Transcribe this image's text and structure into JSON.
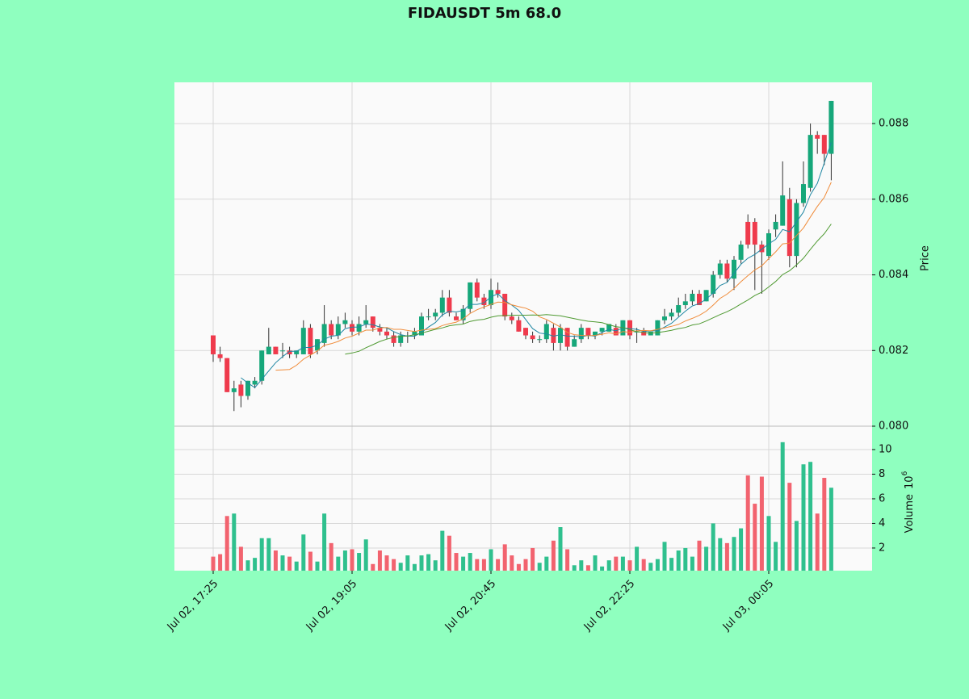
{
  "chart_data": {
    "type": "candlestick",
    "title": "FIDAUSDT 5m 68.0",
    "categories": [
      "Jul 02, 17:25",
      null,
      null,
      null,
      null,
      null,
      null,
      null,
      null,
      null,
      null,
      null,
      null,
      null,
      null,
      null,
      null,
      null,
      null,
      null,
      "Jul 02, 19:05",
      null,
      null,
      null,
      null,
      null,
      null,
      null,
      null,
      null,
      null,
      null,
      null,
      null,
      null,
      null,
      null,
      null,
      null,
      null,
      "Jul 02, 20:45",
      null,
      null,
      null,
      null,
      null,
      null,
      null,
      null,
      null,
      null,
      null,
      null,
      null,
      null,
      null,
      null,
      null,
      null,
      null,
      "Jul 02, 22:25",
      null,
      null,
      null,
      null,
      null,
      null,
      null,
      null,
      null,
      null,
      null,
      null,
      null,
      null,
      null,
      null,
      null,
      null,
      null,
      "Jul 03, 00:05",
      null,
      null,
      null,
      null,
      null,
      null,
      null,
      null,
      null
    ],
    "open": [
      0.0824,
      0.0819,
      0.0818,
      0.0809,
      0.0811,
      0.0808,
      0.0811,
      0.0812,
      0.0819,
      0.0821,
      0.082,
      0.082,
      0.0819,
      0.0819,
      0.0826,
      0.082,
      0.0822,
      0.0827,
      0.0824,
      0.0827,
      0.0827,
      0.0825,
      0.0827,
      0.0829,
      0.0826,
      0.0825,
      0.0824,
      0.0822,
      0.0824,
      0.0824,
      0.0824,
      0.0829,
      0.0829,
      0.083,
      0.0834,
      0.0829,
      0.0828,
      0.0831,
      0.0838,
      0.0834,
      0.0832,
      0.0836,
      0.0835,
      0.0829,
      0.0828,
      0.0826,
      0.0824,
      0.0823,
      0.0823,
      0.0826,
      0.0822,
      0.0826,
      0.0821,
      0.0823,
      0.0826,
      0.0824,
      0.0825,
      0.0825,
      0.0826,
      0.0824,
      0.0828,
      0.0825,
      0.0825,
      0.0824,
      0.0824,
      0.0828,
      0.0829,
      0.083,
      0.0832,
      0.0833,
      0.0835,
      0.0833,
      0.0835,
      0.084,
      0.0843,
      0.0839,
      0.0844,
      0.0854,
      0.0854,
      0.0848,
      0.0845,
      0.0852,
      0.0853,
      0.086,
      0.0845,
      0.0859,
      0.0863,
      0.0877,
      0.0877,
      0.0872
    ],
    "high": [
      0.0824,
      0.0821,
      0.0818,
      0.0812,
      0.0812,
      0.0812,
      0.0813,
      0.082,
      0.0826,
      0.0821,
      0.0822,
      0.0821,
      0.082,
      0.0828,
      0.0827,
      0.0823,
      0.0832,
      0.0828,
      0.0829,
      0.083,
      0.0828,
      0.0829,
      0.0832,
      0.0829,
      0.0827,
      0.0826,
      0.0825,
      0.0825,
      0.0825,
      0.0826,
      0.083,
      0.0831,
      0.0831,
      0.0836,
      0.0836,
      0.083,
      0.0832,
      0.0838,
      0.0839,
      0.0835,
      0.0839,
      0.0838,
      0.0835,
      0.083,
      0.0829,
      0.0826,
      0.0825,
      0.0824,
      0.0828,
      0.0827,
      0.0827,
      0.0826,
      0.0824,
      0.0827,
      0.0826,
      0.0825,
      0.0826,
      0.0827,
      0.0827,
      0.0828,
      0.0828,
      0.0826,
      0.0826,
      0.0825,
      0.0828,
      0.0831,
      0.0831,
      0.0834,
      0.0835,
      0.0836,
      0.0836,
      0.0836,
      0.0841,
      0.0844,
      0.0844,
      0.0845,
      0.0849,
      0.0856,
      0.0855,
      0.0849,
      0.0852,
      0.0856,
      0.087,
      0.0863,
      0.086,
      0.087,
      0.088,
      0.0878,
      0.0877,
      0.0886
    ],
    "low": [
      0.0817,
      0.0817,
      0.0809,
      0.0804,
      0.0805,
      0.0807,
      0.081,
      0.0811,
      0.0819,
      0.0819,
      0.0818,
      0.0818,
      0.0818,
      0.0819,
      0.0818,
      0.0819,
      0.0821,
      0.0823,
      0.0823,
      0.0826,
      0.0824,
      0.0824,
      0.0826,
      0.0825,
      0.0824,
      0.0823,
      0.0821,
      0.0821,
      0.0822,
      0.0823,
      0.0824,
      0.0828,
      0.0828,
      0.0829,
      0.0829,
      0.0828,
      0.0827,
      0.083,
      0.0833,
      0.0831,
      0.0831,
      0.0834,
      0.0828,
      0.0827,
      0.0825,
      0.0823,
      0.0822,
      0.0822,
      0.0822,
      0.082,
      0.082,
      0.082,
      0.0821,
      0.0822,
      0.0823,
      0.0823,
      0.0824,
      0.0825,
      0.0824,
      0.0824,
      0.0823,
      0.0822,
      0.0824,
      0.0824,
      0.0824,
      0.0827,
      0.0828,
      0.0829,
      0.0831,
      0.0832,
      0.0832,
      0.0833,
      0.0834,
      0.0839,
      0.0838,
      0.0836,
      0.0843,
      0.0847,
      0.0836,
      0.0835,
      0.0844,
      0.085,
      0.0853,
      0.0842,
      0.0842,
      0.0858,
      0.0862,
      0.0872,
      0.0869,
      0.0865
    ],
    "close": [
      0.0819,
      0.0818,
      0.0809,
      0.081,
      0.0808,
      0.0812,
      0.0812,
      0.082,
      0.0821,
      0.0819,
      0.082,
      0.0819,
      0.082,
      0.0826,
      0.0819,
      0.0823,
      0.0827,
      0.0824,
      0.0827,
      0.0828,
      0.0825,
      0.0827,
      0.0828,
      0.0826,
      0.0825,
      0.0824,
      0.0822,
      0.0824,
      0.0824,
      0.0825,
      0.0829,
      0.0829,
      0.083,
      0.0834,
      0.083,
      0.0828,
      0.0831,
      0.0838,
      0.0834,
      0.0832,
      0.0836,
      0.0835,
      0.0829,
      0.0828,
      0.0825,
      0.0824,
      0.0823,
      0.0823,
      0.0827,
      0.0822,
      0.0826,
      0.0821,
      0.0823,
      0.0826,
      0.0824,
      0.0825,
      0.0826,
      0.0827,
      0.0824,
      0.0828,
      0.0824,
      0.0825,
      0.0824,
      0.0825,
      0.0828,
      0.0829,
      0.083,
      0.0832,
      0.0833,
      0.0835,
      0.0832,
      0.0836,
      0.084,
      0.0843,
      0.0839,
      0.0844,
      0.0848,
      0.0848,
      0.0848,
      0.0846,
      0.0851,
      0.0854,
      0.0861,
      0.0845,
      0.0859,
      0.0864,
      0.0877,
      0.0876,
      0.0872,
      0.0886
    ],
    "up_color": "#16a77a",
    "down_color": "#ef3a4c",
    "moving_averages": [
      {
        "color": "#1f87a3",
        "values": [
          null,
          null,
          null,
          null,
          0.08128,
          0.08114,
          0.08102,
          0.08124,
          0.08146,
          0.08168,
          0.08184,
          0.08198,
          0.08198,
          0.08208,
          0.08208,
          0.08214,
          0.0823,
          0.08238,
          0.0824,
          0.08258,
          0.08262,
          0.08262,
          0.0827,
          0.08268,
          0.08262,
          0.0826,
          0.0825,
          0.08242,
          0.08238,
          0.08238,
          0.08248,
          0.08262,
          0.08274,
          0.08294,
          0.08304,
          0.08302,
          0.08306,
          0.08322,
          0.08322,
          0.08326,
          0.08342,
          0.0835,
          0.08332,
          0.0832,
          0.08306,
          0.08282,
          0.08258,
          0.08246,
          0.08244,
          0.08238,
          0.08242,
          0.08238,
          0.08238,
          0.08236,
          0.0824,
          0.08238,
          0.08248,
          0.08256,
          0.08252,
          0.0826,
          0.08258,
          0.08256,
          0.0825,
          0.08252,
          0.08252,
          0.08262,
          0.08272,
          0.08288,
          0.08304,
          0.08318,
          0.08324,
          0.08336,
          0.08352,
          0.08372,
          0.0838,
          0.08404,
          0.08428,
          0.08444,
          0.08454,
          0.08468,
          0.08482,
          0.08494,
          0.0852,
          0.08514,
          0.0854,
          0.08566,
          0.08612,
          0.08642,
          0.08696,
          0.0875
        ]
      },
      {
        "color": "#f08c3a",
        "values": [
          null,
          null,
          null,
          null,
          null,
          null,
          null,
          null,
          null,
          0.08148,
          0.08149,
          0.0815,
          0.08161,
          0.08177,
          0.08188,
          0.08199,
          0.08214,
          0.08218,
          0.08224,
          0.08233,
          0.08238,
          0.08246,
          0.08254,
          0.08254,
          0.0826,
          0.08261,
          0.08256,
          0.08256,
          0.08253,
          0.0825,
          0.08254,
          0.08256,
          0.08258,
          0.08266,
          0.08271,
          0.08275,
          0.08284,
          0.08298,
          0.08308,
          0.08315,
          0.08322,
          0.08328,
          0.08327,
          0.08321,
          0.08316,
          0.08312,
          0.08304,
          0.08289,
          0.08282,
          0.08272,
          0.08262,
          0.08248,
          0.08242,
          0.0824,
          0.08239,
          0.0824,
          0.08243,
          0.08247,
          0.08244,
          0.0825,
          0.08248,
          0.08252,
          0.08253,
          0.08252,
          0.08256,
          0.0826,
          0.08264,
          0.08269,
          0.08278,
          0.08285,
          0.08293,
          0.08304,
          0.0832,
          0.08338,
          0.08349,
          0.08364,
          0.08382,
          0.08398,
          0.08413,
          0.08424,
          0.08443,
          0.08461,
          0.08482,
          0.08484,
          0.08504,
          0.08524,
          0.08553,
          0.08581,
          0.08605,
          0.08645
        ]
      },
      {
        "color": "#4f9a32",
        "values": [
          null,
          null,
          null,
          null,
          null,
          null,
          null,
          null,
          null,
          null,
          null,
          null,
          null,
          null,
          null,
          null,
          null,
          null,
          null,
          0.081905,
          0.081935,
          0.08198,
          0.082075,
          0.082155,
          0.08224,
          0.0823,
          0.08235,
          0.08237,
          0.082385,
          0.082415,
          0.08246,
          0.08251,
          0.08256,
          0.0826,
          0.082655,
          0.08268,
          0.0827,
          0.08277,
          0.082805,
          0.082825,
          0.08288,
          0.08292,
          0.082925,
          0.082935,
          0.082935,
          0.082935,
          0.08294,
          0.082935,
          0.08295,
          0.082935,
          0.08292,
          0.08288,
          0.082845,
          0.082805,
          0.082775,
          0.08276,
          0.082735,
          0.08268,
          0.08263,
          0.08261,
          0.08255,
          0.0825,
          0.082475,
          0.08246,
          0.082475,
          0.0825,
          0.082535,
          0.08258,
          0.08261,
          0.082675,
          0.082705,
          0.08278,
          0.082865,
          0.08295,
          0.083025,
          0.08312,
          0.08323,
          0.083335,
          0.083455,
          0.083545,
          0.08368,
          0.083825,
          0.08401,
          0.08411,
          0.084265,
          0.08444,
          0.084675,
          0.084895,
          0.08509,
          0.085345
        ]
      }
    ],
    "ylabel": "Price",
    "ylim": [
      0.08,
      0.08909
    ],
    "yticks": [
      {
        "value": 0.08,
        "label": "0.080"
      },
      0.082,
      0.084,
      0.086,
      0.088
    ],
    "volume": {
      "values": [
        1.3,
        1.5,
        4.6,
        4.8,
        2.1,
        1.0,
        1.2,
        2.8,
        2.8,
        1.8,
        1.4,
        1.3,
        0.9,
        3.1,
        1.7,
        0.9,
        4.8,
        2.4,
        1.3,
        1.8,
        1.9,
        1.6,
        2.7,
        0.7,
        1.8,
        1.4,
        1.1,
        0.8,
        1.4,
        0.7,
        1.4,
        1.5,
        1.0,
        3.4,
        3.0,
        1.6,
        1.3,
        1.6,
        1.1,
        1.1,
        1.9,
        1.1,
        2.3,
        1.4,
        0.7,
        1.1,
        2.0,
        0.8,
        1.3,
        2.6,
        3.7,
        1.9,
        0.6,
        1.0,
        0.6,
        1.4,
        0.5,
        1.0,
        1.3,
        1.3,
        1.0,
        2.1,
        1.1,
        0.8,
        1.1,
        2.5,
        1.2,
        1.8,
        2.0,
        1.3,
        2.6,
        2.1,
        4.0,
        2.8,
        2.4,
        2.9,
        3.6,
        7.9,
        5.6,
        7.8,
        4.6,
        2.5,
        10.6,
        7.3,
        4.2,
        8.8,
        9.0,
        4.8,
        7.7,
        6.9
      ],
      "up_color": "#2fc08e",
      "down_color": "#f2636f"
    },
    "y2label": "Volume",
    "y2_scale": {
      "base": "10",
      "exponent": "6"
    },
    "y2lim": [
      0.16,
      11.9
    ],
    "y2ticks": [
      2,
      4,
      6,
      8,
      10
    ],
    "grid": true
  }
}
